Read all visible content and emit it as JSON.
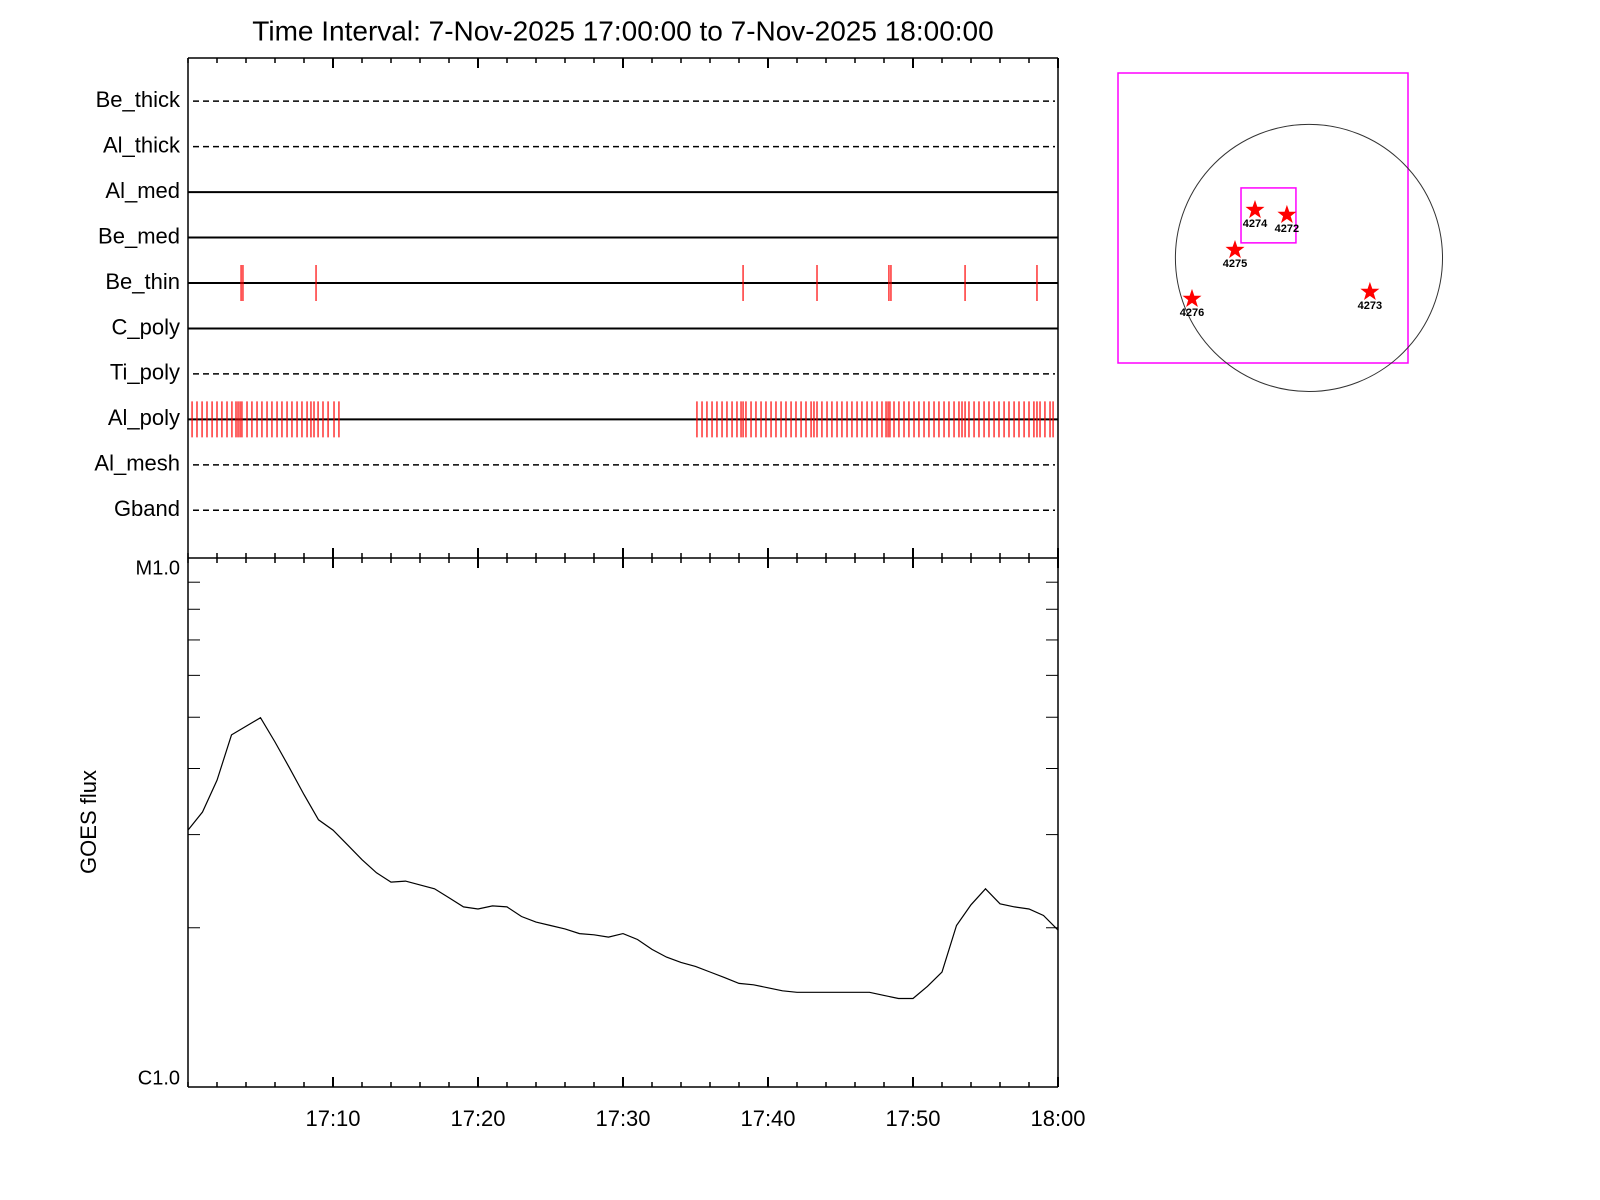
{
  "chart_data": [
    {
      "type": "timeline",
      "title": "Time Interval:  7-Nov-2025 17:00:00 to  7-Nov-2025 18:00:00",
      "xlim": [
        0,
        60
      ],
      "event_color": "#ff0000",
      "series": [
        {
          "name": "Be_thick",
          "style": "dashed",
          "events": []
        },
        {
          "name": "Al_thick",
          "style": "dashed",
          "events": []
        },
        {
          "name": "Al_med",
          "style": "solid",
          "events": []
        },
        {
          "name": "Be_med",
          "style": "solid",
          "events": []
        },
        {
          "name": "Be_thin",
          "style": "solid",
          "events": [
            3.66,
            3.79,
            8.83,
            38.28,
            43.38,
            48.34,
            48.48,
            53.59,
            58.55
          ]
        },
        {
          "name": "C_poly",
          "style": "solid",
          "events": []
        },
        {
          "name": "Ti_poly",
          "style": "dashed",
          "events": []
        },
        {
          "name": "Al_poly",
          "style": "solid",
          "events": [
            0.28,
            0.62,
            0.97,
            1.31,
            1.66,
            2.0,
            2.34,
            2.69,
            3.03,
            3.31,
            3.45,
            3.59,
            3.72,
            4.07,
            4.41,
            4.76,
            5.1,
            5.45,
            5.79,
            6.14,
            6.48,
            6.83,
            7.17,
            7.52,
            7.86,
            8.21,
            8.48,
            8.69,
            8.97,
            9.31,
            9.66,
            10.07,
            10.41,
            35.1,
            35.45,
            35.79,
            36.14,
            36.48,
            36.83,
            37.17,
            37.52,
            37.86,
            38.14,
            38.28,
            38.48,
            38.83,
            39.17,
            39.52,
            39.86,
            40.21,
            40.55,
            40.9,
            41.24,
            41.59,
            41.93,
            42.28,
            42.62,
            42.97,
            43.17,
            43.38,
            43.72,
            44.07,
            44.41,
            44.76,
            45.1,
            45.45,
            45.79,
            46.14,
            46.48,
            46.83,
            47.17,
            47.52,
            47.86,
            48.14,
            48.28,
            48.41,
            48.69,
            49.03,
            49.38,
            49.72,
            50.07,
            50.41,
            50.76,
            51.1,
            51.45,
            51.79,
            52.14,
            52.48,
            52.83,
            53.17,
            53.38,
            53.59,
            53.86,
            54.21,
            54.55,
            54.9,
            55.24,
            55.59,
            55.93,
            56.28,
            56.62,
            56.97,
            57.31,
            57.66,
            58.0,
            58.34,
            58.55,
            58.76,
            59.1,
            59.45,
            59.66
          ]
        },
        {
          "name": "Al_mesh",
          "style": "dashed",
          "events": []
        },
        {
          "name": "Gband",
          "style": "dashed",
          "events": []
        }
      ]
    },
    {
      "type": "line",
      "ylabel": "GOES flux",
      "log_scale": true,
      "color": "#000000",
      "xlim": [
        0,
        60
      ],
      "xticks": [
        {
          "value": 10,
          "label": "17:10"
        },
        {
          "value": 20,
          "label": "17:20"
        },
        {
          "value": 30,
          "label": "17:30"
        },
        {
          "value": 40,
          "label": "17:40"
        },
        {
          "value": 50,
          "label": "17:50"
        },
        {
          "value": 60,
          "label": "18:00"
        }
      ],
      "ylim": [
        1e-06,
        1e-05
      ],
      "yticks": [
        {
          "value": 1e-06,
          "label": "C1.0"
        },
        {
          "value": 1e-05,
          "label": "M1.0"
        }
      ],
      "x": [
        0,
        1,
        2,
        3,
        5,
        6,
        7,
        8,
        9,
        10,
        11,
        12,
        13,
        14,
        15,
        16,
        17,
        18,
        19,
        20,
        21,
        22,
        23,
        24,
        25,
        26,
        27,
        28,
        29,
        30,
        31,
        32,
        33,
        34,
        35,
        36,
        37,
        38,
        39,
        40,
        41,
        42,
        43,
        44,
        45,
        46,
        47,
        48,
        49,
        50,
        51,
        52,
        53,
        54,
        55,
        56,
        57,
        58,
        59,
        60
      ],
      "values": [
        3.06e-06,
        3.31e-06,
        3.8e-06,
        4.63e-06,
        4.99e-06,
        4.49e-06,
        4.01e-06,
        3.57e-06,
        3.2e-06,
        3.06e-06,
        2.87e-06,
        2.69e-06,
        2.54e-06,
        2.44e-06,
        2.45e-06,
        2.41e-06,
        2.37e-06,
        2.28e-06,
        2.19e-06,
        2.17e-06,
        2.2e-06,
        2.19e-06,
        2.1e-06,
        2.05e-06,
        2.02e-06,
        1.99e-06,
        1.95e-06,
        1.94e-06,
        1.92e-06,
        1.95e-06,
        1.9e-06,
        1.82e-06,
        1.76e-06,
        1.72e-06,
        1.69e-06,
        1.65e-06,
        1.61e-06,
        1.57e-06,
        1.56e-06,
        1.54e-06,
        1.52e-06,
        1.51e-06,
        1.51e-06,
        1.51e-06,
        1.51e-06,
        1.51e-06,
        1.51e-06,
        1.49e-06,
        1.47e-06,
        1.47e-06,
        1.55e-06,
        1.65e-06,
        2.02e-06,
        2.21e-06,
        2.37e-06,
        2.22e-06,
        2.19e-06,
        2.17e-06,
        2.11e-06,
        1.98e-06
      ]
    },
    {
      "type": "scatter",
      "xlim": [
        -1394,
        723
      ],
      "ylim": [
        -767,
        1350
      ],
      "disk_radius": 975,
      "frame_color": "#ff00ff",
      "color": "#ff0000",
      "fov_box": {
        "xlim": [
          -496,
          -95
        ],
        "ylim": [
          110,
          511
        ]
      },
      "labels": [
        "4274",
        "4272",
        "4275",
        "4276",
        "4273"
      ],
      "x": [
        -394,
        -161,
        -540,
        -854,
        445
      ],
      "y": [
        350,
        314,
        58,
        -299,
        -248
      ]
    }
  ]
}
